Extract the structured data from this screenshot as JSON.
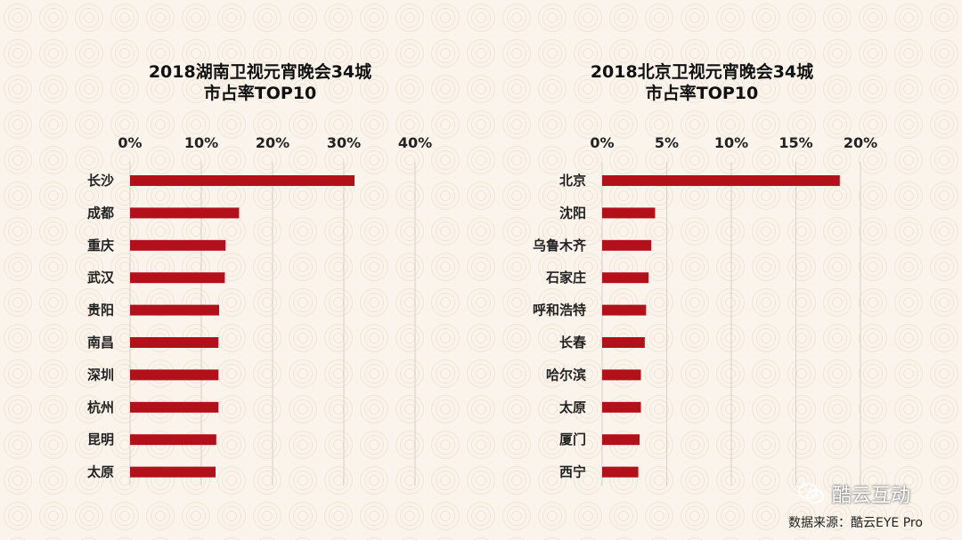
{
  "chart_data": [
    {
      "type": "bar",
      "orientation": "horizontal",
      "title_lines": [
        "2018湖南卫视元宵晚会34城",
        "市占率TOP10"
      ],
      "categories": [
        "长沙",
        "成都",
        "重庆",
        "武汉",
        "贵阳",
        "南昌",
        "深圳",
        "杭州",
        "昆明",
        "太原"
      ],
      "values": [
        31.5,
        15.3,
        13.4,
        13.3,
        12.5,
        12.4,
        12.4,
        12.4,
        12.1,
        12.0
      ],
      "xlim": [
        0,
        40
      ],
      "ticks": [
        "0%",
        "10%",
        "20%",
        "30%",
        "40%"
      ],
      "tick_values": [
        0,
        10,
        20,
        30,
        40
      ],
      "grid": true
    },
    {
      "type": "bar",
      "orientation": "horizontal",
      "title_lines": [
        "2018北京卫视元宵晚会34城",
        "市占率TOP10"
      ],
      "categories": [
        "北京",
        "沈阳",
        "乌鲁木齐",
        "石家庄",
        "呼和浩特",
        "长春",
        "哈尔滨",
        "太原",
        "厦门",
        "西宁"
      ],
      "values": [
        18.4,
        4.1,
        3.8,
        3.6,
        3.4,
        3.3,
        3.0,
        3.0,
        2.9,
        2.8
      ],
      "xlim": [
        0,
        20
      ],
      "ticks": [
        "0%",
        "5%",
        "10%",
        "15%",
        "20%"
      ],
      "tick_values": [
        0,
        5,
        10,
        15,
        20
      ],
      "grid": true
    }
  ],
  "watermark": {
    "text": "酷云互动",
    "icon": "wechat-icon"
  },
  "source": "数据来源：酷云EYE Pro"
}
